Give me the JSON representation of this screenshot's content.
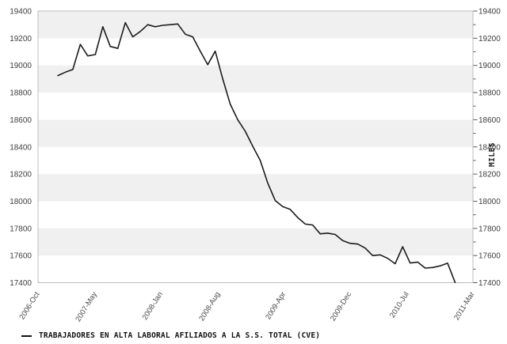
{
  "page": {
    "background": "#ffffff"
  },
  "legend": {
    "marker": "—",
    "label": "TRABAJADORES EN ALTA LABORAL AFILIADOS A LA S.S. TOTAL (CVE)"
  },
  "chart_data": {
    "type": "line",
    "title": "",
    "xlabel": "",
    "ylabel_right": "MILES",
    "x": [
      "2006-Oct",
      "2006-Nov",
      "2006-Dec",
      "2007-Jan",
      "2007-Feb",
      "2007-Mar",
      "2007-Apr",
      "2007-May",
      "2007-Jun",
      "2007-Jul",
      "2007-Aug",
      "2007-Sep",
      "2007-Oct",
      "2007-Nov",
      "2007-Dec",
      "2008-Jan",
      "2008-Feb",
      "2008-Mar",
      "2008-Apr",
      "2008-May",
      "2008-Jun",
      "2008-Jul",
      "2008-Aug",
      "2008-Sep",
      "2008-Oct",
      "2008-Nov",
      "2008-Dec",
      "2009-Jan",
      "2009-Feb",
      "2009-Mar",
      "2009-Apr",
      "2009-May",
      "2009-Jun",
      "2009-Jul",
      "2009-Aug",
      "2009-Sep",
      "2009-Oct",
      "2009-Nov",
      "2009-Dec",
      "2010-Jan",
      "2010-Feb",
      "2010-Mar",
      "2010-Apr",
      "2010-May",
      "2010-Jun",
      "2010-Jul",
      "2010-Aug",
      "2010-Sep",
      "2010-Oct",
      "2010-Nov",
      "2010-Dec",
      "2011-Jan",
      "2011-Feb",
      "2011-Mar"
    ],
    "x_tick_indices": [
      0,
      7,
      15,
      22,
      30,
      38,
      45,
      53
    ],
    "x_tick_labels": [
      "2006-Oct",
      "2007-May",
      "2008-Jan",
      "2008-Aug",
      "2009-Apr",
      "2009-Dec",
      "2010-Jul",
      "2011-Mar"
    ],
    "series": [
      {
        "name": "TRABAJADORES EN ALTA LABORAL AFILIADOS A LA S.S. TOTAL (CVE)",
        "values": [
          18925,
          18950,
          18970,
          19155,
          19070,
          19080,
          19285,
          19140,
          19125,
          19315,
          19210,
          19250,
          19300,
          19285,
          19295,
          19300,
          19305,
          19230,
          19210,
          19105,
          19005,
          19105,
          18900,
          18715,
          18600,
          18515,
          18405,
          18300,
          18135,
          18005,
          17960,
          17940,
          17880,
          17832,
          17825,
          17760,
          17765,
          17755,
          17710,
          17690,
          17685,
          17655,
          17600,
          17605,
          17580,
          17540,
          17665,
          17545,
          17552,
          17508,
          17512,
          17524,
          17544,
          17402
        ]
      }
    ],
    "ylim": [
      17400,
      19400
    ],
    "y_tick_step": 200,
    "y_minor_tick_step": 100,
    "y_tick_labels": [
      "17400",
      "17600",
      "17800",
      "18000",
      "18200",
      "18400",
      "18600",
      "18800",
      "19000",
      "19200",
      "19400"
    ],
    "y_labels_on_both_sides": true,
    "grid": "alternating-horizontal-bands",
    "legend_position": "bottom-left",
    "colors": {
      "line": "#1c1c1c",
      "band": "#f0f0f0",
      "plot_background": "#ffffff",
      "border": "#bcbcbc",
      "tick": "#555555",
      "axis_label": "#3c3c3c"
    }
  }
}
